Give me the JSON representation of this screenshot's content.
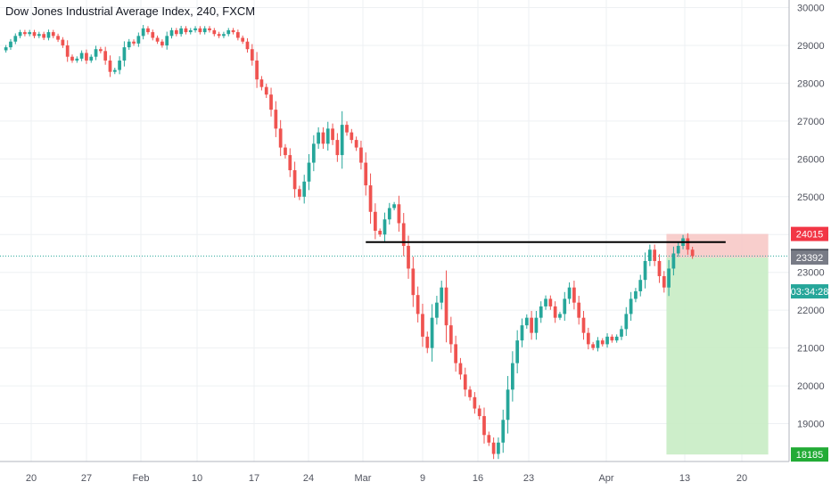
{
  "chart_data": {
    "type": "candlestick",
    "title": "Dow Jones Industrial Average Index, 240, FXCM",
    "xlabel": "",
    "ylabel": "",
    "x_ticks": [
      "20",
      "27",
      "Feb",
      "10",
      "17",
      "24",
      "Mar",
      "9",
      "16",
      "23",
      "Apr",
      "13",
      "20"
    ],
    "y_ticks": [
      19000,
      20000,
      21000,
      22000,
      23000,
      24000,
      25000,
      26000,
      27000,
      28000,
      29000,
      30000
    ],
    "ylim": [
      18000,
      30200
    ],
    "grid": true,
    "colors": {
      "up": "#26a69a",
      "down": "#ef5350",
      "line": "#000000",
      "stop_zone": "#f7c5c3",
      "target_zone": "#c8ecc4",
      "price_line": "#26a69a"
    },
    "series": [
      {
        "values": [
          28950,
          29100,
          29250,
          29350,
          29300,
          29350,
          29250,
          29300,
          29200,
          29350,
          29250,
          29150,
          29000,
          28700,
          28600,
          28650,
          28800,
          28600,
          28700,
          28900,
          28850,
          28600,
          28300,
          28350,
          28600,
          28950,
          29100,
          29050,
          29250,
          29450,
          29350,
          29200,
          29100,
          29000,
          29250,
          29400,
          29300,
          29450,
          29350,
          29400,
          29450,
          29350,
          29450,
          29400,
          29300,
          29250,
          29300,
          29400,
          29350,
          29200,
          29100,
          28900,
          28600,
          28100,
          27900,
          27700,
          27300,
          26800,
          26300,
          26100,
          25700,
          25200,
          25000,
          25400,
          25900,
          26400,
          26700,
          26400,
          26800,
          26500,
          26100,
          26900,
          26700,
          26500,
          26300,
          25900,
          25300,
          24600,
          24100,
          24000,
          24400,
          24700,
          24800,
          24300,
          23700,
          23100,
          22400,
          21900,
          21300,
          21000,
          21800,
          22200,
          22600,
          21600,
          21100,
          20600,
          20300,
          19900,
          19700,
          19400,
          19200,
          18700,
          18500,
          18200,
          18500,
          19100,
          19900,
          20600,
          21200,
          21600,
          21800,
          21400,
          21800,
          22100,
          22300,
          22100,
          21800,
          21900,
          22300,
          22600,
          22200,
          21800,
          21400,
          21100,
          21000,
          21200,
          21100,
          21300,
          21200,
          21300,
          21500,
          21900,
          22300,
          22500,
          22800,
          23300,
          23600,
          23300,
          22900,
          22600,
          23100,
          23500,
          23700,
          23900,
          23600,
          23432
        ]
      }
    ],
    "annotations": {
      "resistance_level": 23800,
      "resistance_start_index": 76,
      "resistance_end_index": 152,
      "last_price": 23432,
      "position_entry": 23392,
      "position_stop": 24015,
      "position_target": 18185,
      "position_start_index": 140,
      "position_end_index": 159,
      "countdown": "03:34:28"
    }
  }
}
